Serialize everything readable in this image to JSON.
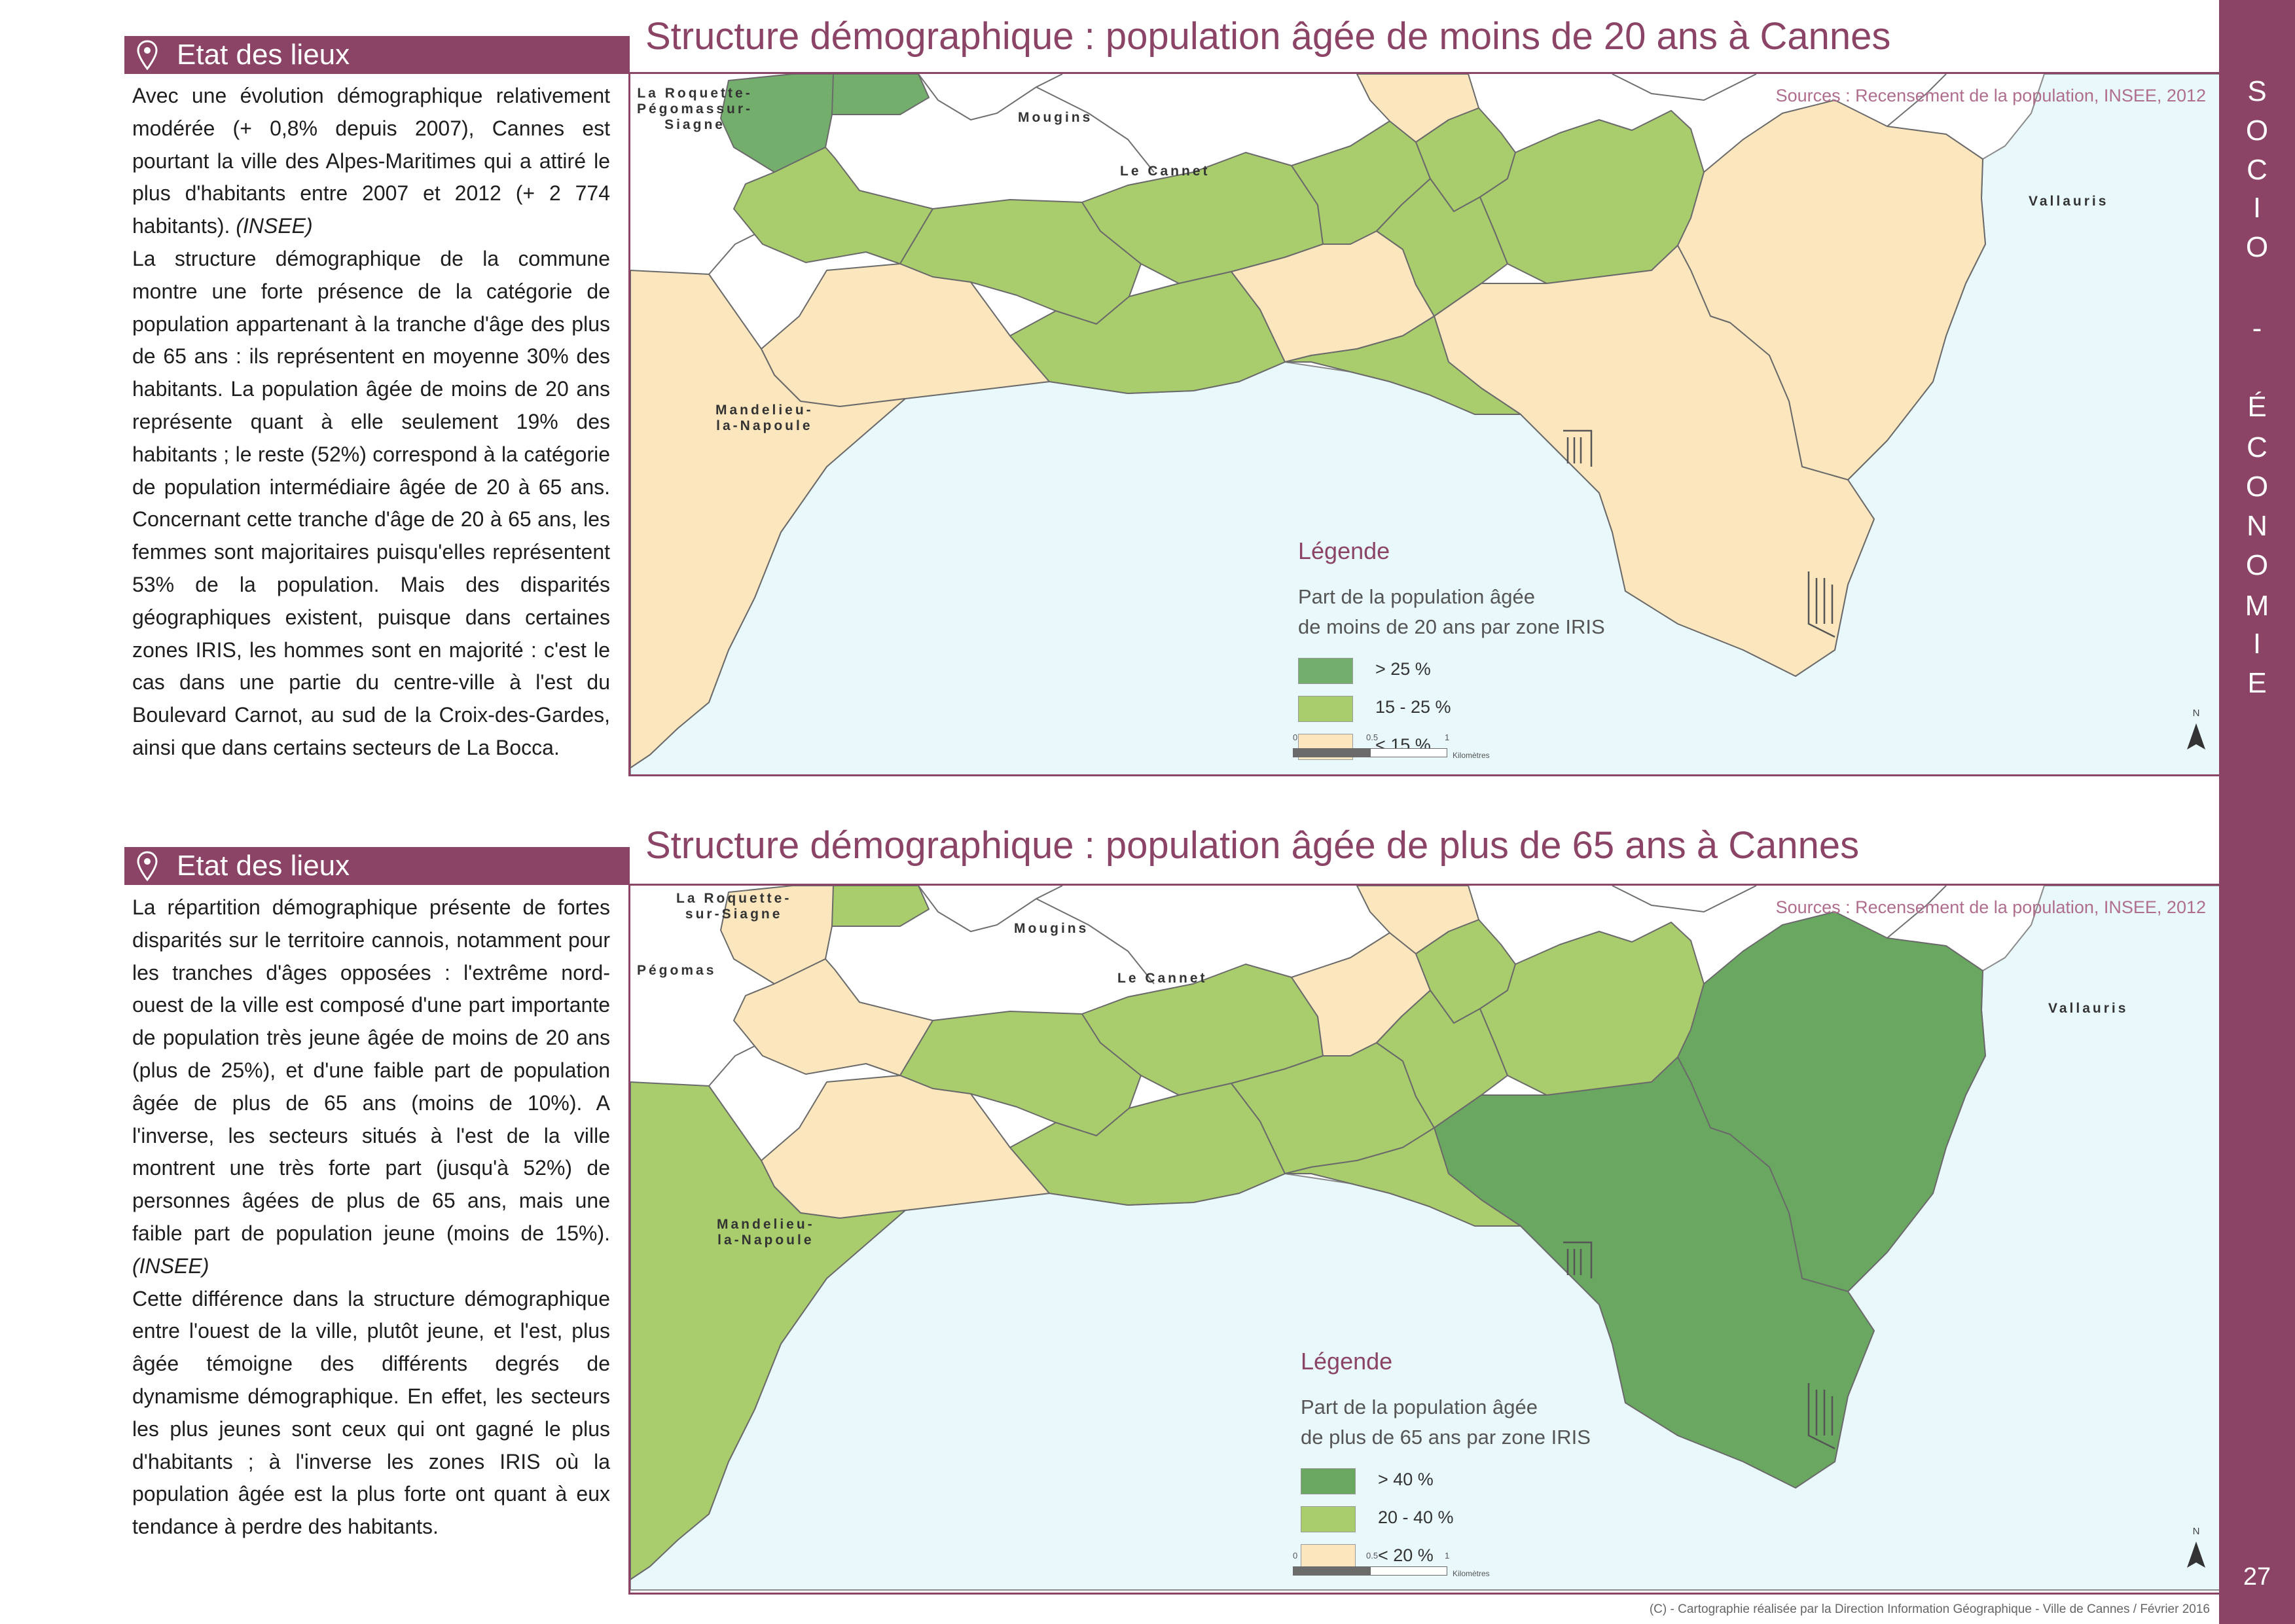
{
  "sections": [
    {
      "header": "Etat des lieux",
      "paragraphs": [
        {
          "text": "Avec une évolution démographique relativement modérée (+ 0,8% depuis 2007), Cannes est pourtant la ville des Alpes-Maritimes qui a attiré le plus d'habitants entre 2007 et 2012 (+ 2 774 habitants).",
          "cite": "(INSEE)"
        },
        {
          "text": "La structure démographique de la commune montre une forte présence de la catégorie de population appartenant à la tranche d'âge des plus de 65 ans : ils représentent en moyenne 30% des habitants. La population âgée de moins de 20 ans représente quant à elle seulement 19% des habitants ; le reste (52%) correspond à la catégorie de population intermédiaire âgée de 20 à 65 ans. Concernant cette tranche d'âge de 20 à 65 ans, les femmes sont majoritaires puisqu'elles représentent 53% de la population. Mais des disparités géographiques existent, puisque dans certaines zones IRIS, les hommes sont en majorité : c'est le cas dans une partie du centre-ville à l'est du Boulevard Carnot, au sud de la Croix-des-Gardes, ainsi que dans certains secteurs de La Bocca.",
          "cite": ""
        }
      ]
    },
    {
      "header": "Etat des lieux",
      "paragraphs": [
        {
          "text": "La répartition démographique présente de fortes disparités sur le territoire cannois, notamment pour les tranches d'âges opposées : l'extrême nord-ouest de la ville est composé d'une part importante de population très jeune âgée de moins de 20 ans (plus de 25%), et d'une faible part de population âgée de plus de 65 ans (moins de 10%). A l'inverse, les secteurs situés à l'est de la ville montrent une très forte part (jusqu'à 52%) de personnes âgées de plus de 65 ans, mais une faible part de population jeune (moins de 15%).",
          "cite": "(INSEE)"
        },
        {
          "text": "Cette différence dans la structure démographique entre l'ouest de la ville, plutôt jeune, et l'est, plus âgée témoigne des différents degrés de dynamisme démographique. En effet, les secteurs les plus jeunes sont ceux qui ont gagné le plus d'habitants ; à l'inverse les zones IRIS où la population âgée est la plus forte ont quant à eux tendance à perdre des habitants.",
          "cite": ""
        }
      ]
    }
  ],
  "maps": [
    {
      "title": "Structure démographique : population âgée de moins de 20 ans à Cannes",
      "source": "Sources : Recensement de la population, INSEE, 2012",
      "places": {
        "roquette": "La Roquette-\nPégomassur-\nSiagne",
        "mougins": "Mougins",
        "cannet": "Le Cannet",
        "vallauris": "Vallauris",
        "mandelieu": "Mandelieu-\nla-Napoule"
      },
      "legend": {
        "title": "Légende",
        "description": "Part de la population âgée\nde moins de 20 ans par zone IRIS",
        "items": [
          {
            "label": "> 25 %",
            "color": "#74ae6d"
          },
          {
            "label": "15 - 25 %",
            "color": "#a9cc6c"
          },
          {
            "label": "< 15 %",
            "color": "#fbe6bd"
          }
        ]
      },
      "zone_classes": {
        "A": 0,
        "B": 1,
        "C": 0,
        "D": 1,
        "E": 2,
        "F": 2,
        "G": 1,
        "H": 1,
        "I": 1,
        "J": 1,
        "K": 2,
        "L": 1,
        "M": 1,
        "N": 2,
        "O": 2,
        "P": 1,
        "Q": 2
      }
    },
    {
      "title": "Structure démographique : population âgée de plus de 65 ans à Cannes",
      "source": "Sources : Recensement de la population, INSEE, 2012",
      "places": {
        "roquette": "La Roquette-\nsur-Siagne",
        "mougins": "Mougins",
        "cannet": "Le Cannet",
        "vallauris": "Vallauris",
        "mandelieu": "Mandelieu-\nla-Napoule",
        "pegomas": "Pégomas"
      },
      "legend": {
        "title": "Légende",
        "description": "Part de la population âgée\nde plus de 65 ans par zone IRIS",
        "items": [
          {
            "label": "> 40 %",
            "color": "#6aa862"
          },
          {
            "label": "20 - 40 %",
            "color": "#a9cc6c"
          },
          {
            "label": "< 20 %",
            "color": "#fbe6bd"
          }
        ]
      },
      "zone_classes": {
        "A": 2,
        "B": 2,
        "C": 1,
        "D": 1,
        "E": 2,
        "F": 1,
        "G": 1,
        "H": 1,
        "I": 2,
        "J": 1,
        "K": 1,
        "L": 1,
        "M": 1,
        "N": 0,
        "O": 0,
        "P": 1,
        "Q": 2
      }
    }
  ],
  "scale": {
    "ticks": [
      "0",
      "0.5",
      "1"
    ],
    "unit": "Kilomètres",
    "north": "N"
  },
  "sidebar": {
    "letters": [
      "S",
      "O",
      "C",
      "I",
      "O",
      "-",
      "É",
      "C",
      "O",
      "N",
      "O",
      "M",
      "I",
      "E"
    ],
    "page_number": "27"
  },
  "footer": "(C) - Cartographie réalisée par la Direction Information Géographique - Ville de Cannes / Février 2016"
}
